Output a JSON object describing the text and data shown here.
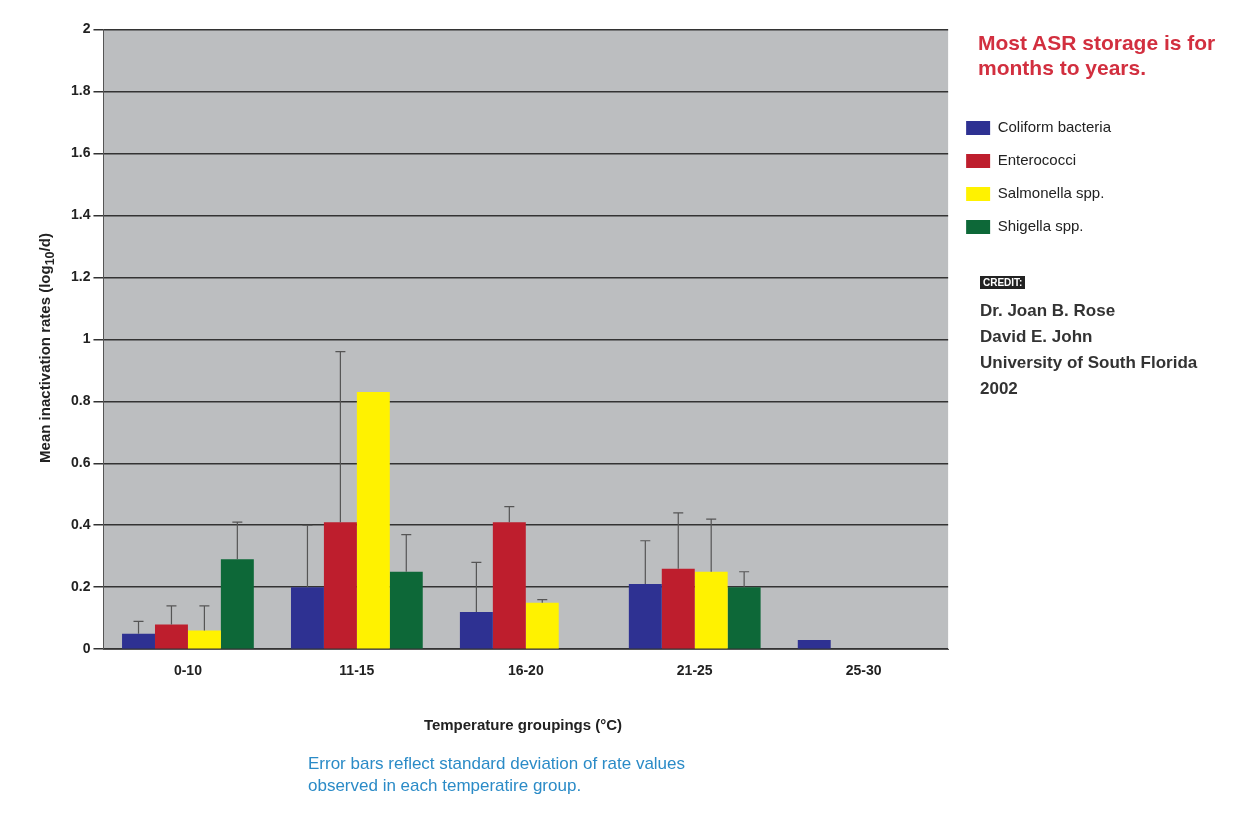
{
  "chart_data": {
    "type": "bar",
    "xlabel": "Temperature groupings (°C)",
    "ylabel": "Mean inactivation rates (log$_{10}$/d)",
    "categories": [
      "0-10",
      "11-15",
      "16-20",
      "21-25",
      "25-30"
    ],
    "series": [
      {
        "name": "Coliform bacteria",
        "color": "#2e3192",
        "values": [
          0.05,
          0.2,
          0.12,
          0.21,
          0.03
        ],
        "errors": [
          [
            0.05,
            0.09
          ],
          [
            0.2,
            0.4
          ],
          [
            0.12,
            0.28
          ],
          [
            0.21,
            0.35
          ],
          null
        ]
      },
      {
        "name": "Enterococci",
        "color": "#be1e2d",
        "values": [
          0.08,
          0.41,
          0.41,
          0.26,
          null
        ],
        "errors": [
          [
            0.08,
            0.14
          ],
          [
            0.41,
            0.96
          ],
          [
            0.41,
            0.46
          ],
          [
            0.26,
            0.44
          ],
          null
        ]
      },
      {
        "name": "Salmonella spp.",
        "color": "#fff200",
        "values": [
          0.06,
          0.83,
          0.15,
          0.25,
          null
        ],
        "errors": [
          [
            0.06,
            0.14
          ],
          null,
          [
            0.15,
            0.16
          ],
          [
            0.25,
            0.42
          ],
          null
        ]
      },
      {
        "name": "Shigella spp.",
        "color": "#0d6838",
        "values": [
          0.29,
          0.25,
          null,
          0.2,
          null
        ],
        "errors": [
          [
            0.29,
            0.41
          ],
          [
            0.25,
            0.37
          ],
          null,
          [
            0.2,
            0.25
          ],
          null
        ]
      }
    ],
    "ylim": [
      0,
      2
    ],
    "yticks": [
      0,
      0.2,
      0.4,
      0.6,
      0.8,
      1,
      1.2,
      1.4,
      1.6,
      1.8,
      2
    ],
    "grid": "y",
    "legend": "right",
    "annotations": [
      "Most ASR storage is for months to years.",
      "CREDIT:",
      "Dr. Joan B. Rose",
      "David E. John",
      "University of South Florida",
      "2002",
      "Error bars reflect standard deviation of rate values observed in each temperatire group."
    ]
  }
}
